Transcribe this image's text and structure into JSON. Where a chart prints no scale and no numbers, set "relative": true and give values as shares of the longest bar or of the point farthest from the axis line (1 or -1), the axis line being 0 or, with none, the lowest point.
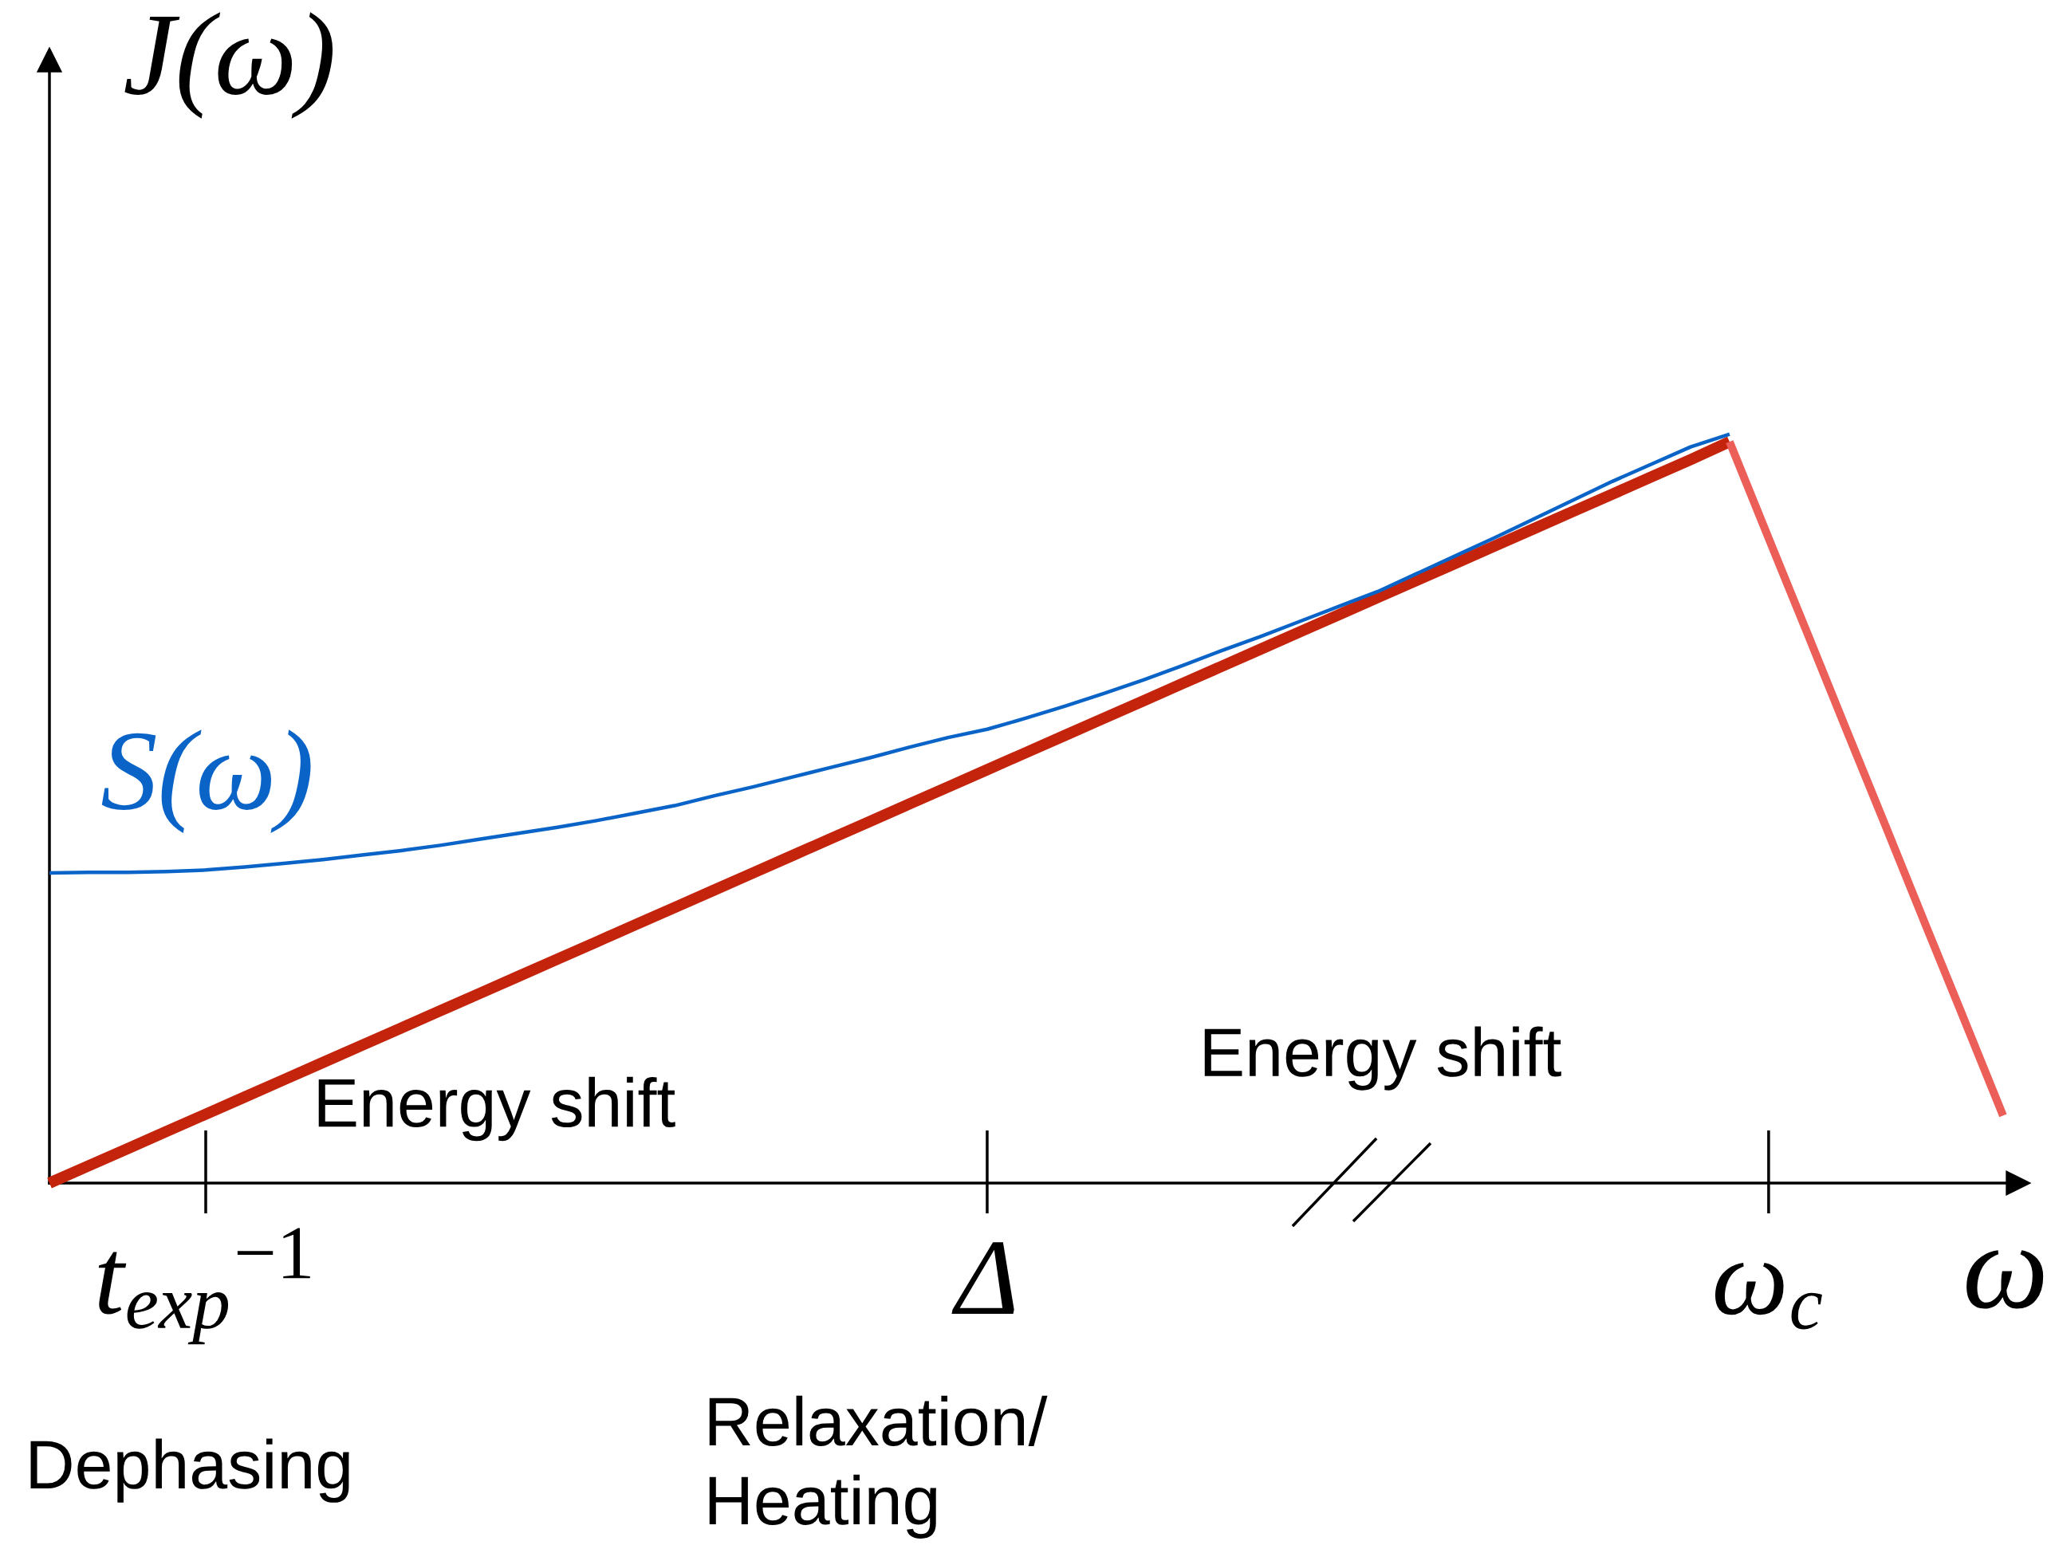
{
  "chart_data": {
    "type": "line",
    "relative": true,
    "xlabel": "ω",
    "ylabel": "J(ω)",
    "categories": [
      null,
      null,
      null,
      null,
      "t$_{exp}$$^{−1}$",
      null,
      null,
      null,
      null,
      null,
      null,
      null,
      null,
      null,
      null,
      null,
      null,
      null,
      null,
      null,
      null,
      null,
      null,
      null,
      "Δ",
      null,
      null,
      null,
      null,
      null,
      null,
      null,
      null,
      null,
      null,
      null,
      null,
      null,
      null,
      null,
      null,
      null,
      null,
      null,
      "ω$_{c}$",
      null,
      null,
      null,
      null,
      null,
      null
    ],
    "series": [
      {
        "color": "#c4230c",
        "values": [
          0,
          0.023,
          0.046,
          0.069,
          0.092,
          0.115,
          0.138,
          0.161,
          0.184,
          0.207,
          0.23,
          0.253,
          0.276,
          0.299,
          0.322,
          0.345,
          0.368,
          0.391,
          0.414,
          0.437,
          0.46,
          0.483,
          0.506,
          0.529,
          0.552,
          0.575,
          0.598,
          0.621,
          0.644,
          0.667,
          0.69,
          0.713,
          0.736,
          0.759,
          0.782,
          0.805,
          0.828,
          0.851,
          0.874,
          0.897,
          0.92,
          0.943,
          0.966,
          0.99,
          null,
          null,
          null,
          null,
          null,
          null,
          null
        ]
      },
      {
        "color": "#ec5f59",
        "values": [
          null,
          null,
          null,
          null,
          null,
          null,
          null,
          null,
          null,
          null,
          null,
          null,
          null,
          null,
          null,
          null,
          null,
          null,
          null,
          null,
          null,
          null,
          null,
          null,
          null,
          null,
          null,
          null,
          null,
          null,
          null,
          null,
          null,
          null,
          null,
          null,
          null,
          null,
          null,
          null,
          null,
          null,
          null,
          0.99,
          0.861,
          0.733,
          0.604,
          0.476,
          0.347,
          0.219,
          0.09
        ]
      },
      {
        "name": "S(ω)",
        "color": "#0a64c8",
        "values": [
          0.414,
          0.415,
          0.415,
          0.416,
          0.418,
          0.422,
          0.427,
          0.432,
          0.438,
          0.444,
          0.451,
          0.459,
          0.467,
          0.475,
          0.484,
          0.494,
          0.504,
          0.517,
          0.529,
          0.542,
          0.555,
          0.568,
          0.582,
          0.595,
          0.606,
          0.621,
          0.637,
          0.654,
          0.672,
          0.691,
          0.711,
          0.73,
          0.75,
          0.77,
          0.79,
          0.814,
          0.838,
          0.862,
          0.887,
          0.912,
          0.937,
          0.96,
          0.983,
          1.0,
          null,
          null,
          null,
          null,
          null,
          null,
          null
        ]
      }
    ],
    "annotations": [
      "Energy shift",
      "Energy shift",
      "Dephasing",
      "Relaxation/\nHeating"
    ]
  }
}
